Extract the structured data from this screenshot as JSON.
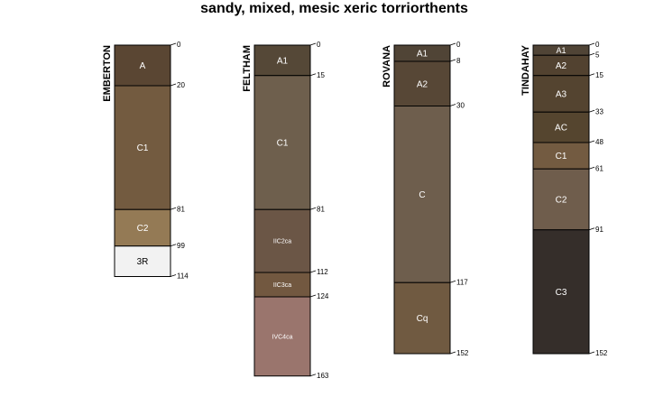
{
  "title": "sandy, mixed, mesic xeric torriorthents",
  "profiles": [
    {
      "name": "EMBERTON",
      "horizons": [
        {
          "label": "A",
          "top": 0,
          "bottom": 20,
          "color": "#5a4633"
        },
        {
          "label": "C1",
          "top": 20,
          "bottom": 81,
          "color": "#735b40"
        },
        {
          "label": "C2",
          "top": 81,
          "bottom": 99,
          "color": "#947a55"
        },
        {
          "label": "3R",
          "top": 99,
          "bottom": 114,
          "color": "#f2f2f2"
        }
      ]
    },
    {
      "name": "FELTHAM",
      "horizons": [
        {
          "label": "A1",
          "top": 0,
          "bottom": 15,
          "color": "#554837"
        },
        {
          "label": "C1",
          "top": 15,
          "bottom": 81,
          "color": "#6e5f4d"
        },
        {
          "label": "IIC2ca",
          "top": 81,
          "bottom": 112,
          "color": "#6b5646"
        },
        {
          "label": "IIC3ca",
          "top": 112,
          "bottom": 124,
          "color": "#725840"
        },
        {
          "label": "IVC4ca",
          "top": 124,
          "bottom": 163,
          "color": "#9a756d"
        }
      ]
    },
    {
      "name": "ROVANA",
      "horizons": [
        {
          "label": "A1",
          "top": 0,
          "bottom": 8,
          "color": "#504436"
        },
        {
          "label": "A2",
          "top": 8,
          "bottom": 30,
          "color": "#574736"
        },
        {
          "label": "C",
          "top": 30,
          "bottom": 117,
          "color": "#6e5e4d"
        },
        {
          "label": "Cq",
          "top": 117,
          "bottom": 152,
          "color": "#705a41"
        }
      ]
    },
    {
      "name": "TINDAHAY",
      "horizons": [
        {
          "label": "A1",
          "top": 0,
          "bottom": 5,
          "color": "#504436"
        },
        {
          "label": "A2",
          "top": 5,
          "bottom": 15,
          "color": "#524230"
        },
        {
          "label": "A3",
          "top": 15,
          "bottom": 33,
          "color": "#544430"
        },
        {
          "label": "AC",
          "top": 33,
          "bottom": 48,
          "color": "#55452f"
        },
        {
          "label": "C1",
          "top": 48,
          "bottom": 61,
          "color": "#735b41"
        },
        {
          "label": "C2",
          "top": 61,
          "bottom": 91,
          "color": "#6f5d4c"
        },
        {
          "label": "C3",
          "top": 91,
          "bottom": 152,
          "color": "#352e2a"
        }
      ]
    }
  ]
}
